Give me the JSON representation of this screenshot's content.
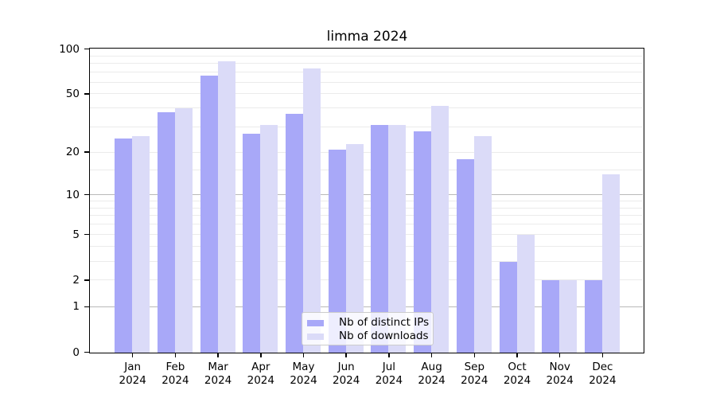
{
  "chart_data": {
    "type": "bar",
    "title": "limma 2024",
    "categories": [
      "Jan 2024",
      "Feb 2024",
      "Mar 2024",
      "Apr 2024",
      "May 2024",
      "Jun 2024",
      "Jul 2024",
      "Aug 2024",
      "Sep 2024",
      "Oct 2024",
      "Nov 2024",
      "Dec 2024"
    ],
    "series": [
      {
        "name": "Nb of distinct IPs",
        "color": "#a8a8f8",
        "values": [
          25,
          38,
          67,
          27,
          37,
          21,
          31,
          28,
          18,
          3,
          2,
          2
        ]
      },
      {
        "name": "Nb of downloads",
        "color": "#dbdbf8",
        "values": [
          26,
          40,
          83,
          31,
          75,
          23,
          31,
          42,
          26,
          5,
          2,
          14
        ]
      }
    ],
    "xlabel": "",
    "ylabel": "",
    "y_axis": {
      "scale": "log1p",
      "ylim": [
        0,
        100
      ],
      "tick_labels": [
        100,
        50,
        20,
        10,
        5,
        2,
        1,
        0
      ],
      "major_gridlines": [
        1,
        10
      ],
      "minor_gridlines": [
        2,
        3,
        4,
        5,
        6,
        7,
        8,
        9,
        15,
        20,
        30,
        40,
        50,
        60,
        70,
        80,
        90
      ]
    },
    "grid": true,
    "legend_position": "inside-bottom-center",
    "colors": {
      "distinct_ips": "#a8a8f8",
      "downloads": "#dbdbf8",
      "major_grid": "#b9b9b9",
      "minor_grid": "#ebebeb",
      "axis": "#000000"
    }
  }
}
